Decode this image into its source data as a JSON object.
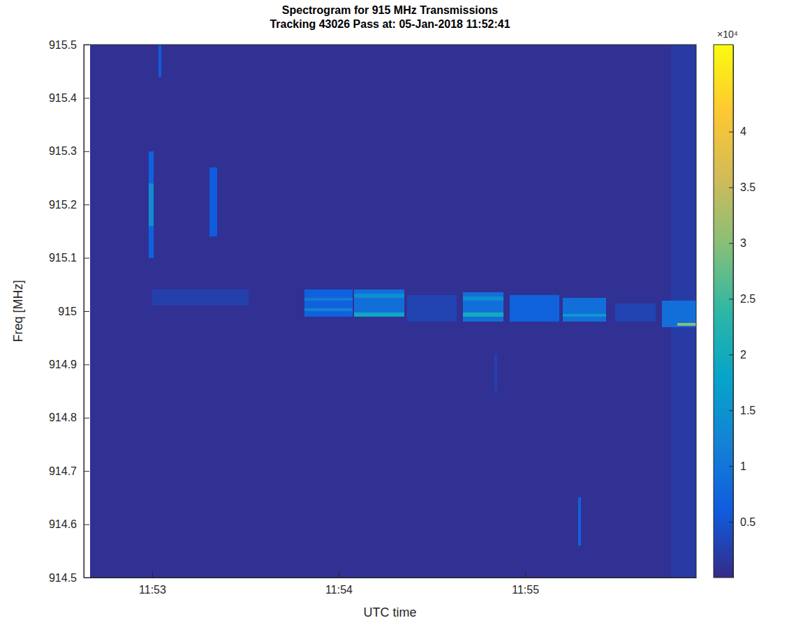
{
  "chart_data": {
    "type": "heatmap",
    "title": "Spectrogram for 915 MHz Transmissions",
    "subtitle": "Tracking 43026 Pass at: 05-Jan-2018 11:52:41",
    "x_label": "UTC time",
    "y_label": "Freq [MHz]",
    "xlim": [
      42758,
      42955
    ],
    "xticks": [
      {
        "value": 42780,
        "label": "11:53"
      },
      {
        "value": 42840,
        "label": "11:54"
      },
      {
        "value": 42900,
        "label": "11:55"
      }
    ],
    "ylim": [
      914.5,
      915.5
    ],
    "yticks": [
      914.5,
      914.6,
      914.7,
      914.8,
      914.9,
      915,
      915.1,
      915.2,
      915.3,
      915.4,
      915.5
    ],
    "cells": [
      {
        "t0": 42760,
        "t1": 42955,
        "f0": 914.5,
        "f1": 915.5,
        "value": 800
      },
      {
        "t0": 42947,
        "t1": 42955,
        "f0": 914.5,
        "f1": 915.5,
        "value": 2000
      },
      {
        "t0": 42779,
        "t1": 42780.5,
        "f0": 915.1,
        "f1": 915.3,
        "value": 7000
      },
      {
        "t0": 42779,
        "t1": 42780.5,
        "f0": 915.16,
        "f1": 915.24,
        "value": 14000
      },
      {
        "t0": 42782,
        "t1": 42783,
        "f0": 915.44,
        "f1": 915.5,
        "value": 6000
      },
      {
        "t0": 42798.5,
        "t1": 42801,
        "f0": 915.14,
        "f1": 915.27,
        "value": 6000
      },
      {
        "t0": 42780,
        "t1": 42811,
        "f0": 915.01,
        "f1": 915.04,
        "value": 2500
      },
      {
        "t0": 42829,
        "t1": 42844.5,
        "f0": 914.99,
        "f1": 915.04,
        "value": 7000
      },
      {
        "t0": 42829,
        "t1": 42844.5,
        "f0": 915.0,
        "f1": 915.005,
        "value": 12000
      },
      {
        "t0": 42829,
        "t1": 42844.5,
        "f0": 915.02,
        "f1": 915.025,
        "value": 11000
      },
      {
        "t0": 42845,
        "t1": 42861,
        "f0": 914.99,
        "f1": 915.04,
        "value": 9000
      },
      {
        "t0": 42845,
        "t1": 42861,
        "f0": 914.99,
        "f1": 914.997,
        "value": 19000
      },
      {
        "t0": 42845,
        "t1": 42861,
        "f0": 915.025,
        "f1": 915.033,
        "value": 14000
      },
      {
        "t0": 42862,
        "t1": 42878,
        "f0": 914.98,
        "f1": 915.03,
        "value": 3000
      },
      {
        "t0": 42880,
        "t1": 42893,
        "f0": 914.98,
        "f1": 915.035,
        "value": 9000
      },
      {
        "t0": 42880,
        "t1": 42893,
        "f0": 914.99,
        "f1": 914.997,
        "value": 20000
      },
      {
        "t0": 42880,
        "t1": 42893,
        "f0": 915.02,
        "f1": 915.027,
        "value": 14000
      },
      {
        "t0": 42895,
        "t1": 42911,
        "f0": 914.98,
        "f1": 915.03,
        "value": 7000
      },
      {
        "t0": 42912,
        "t1": 42926,
        "f0": 914.98,
        "f1": 915.025,
        "value": 9000
      },
      {
        "t0": 42912,
        "t1": 42926,
        "f0": 914.99,
        "f1": 914.995,
        "value": 16000
      },
      {
        "t0": 42929,
        "t1": 42942,
        "f0": 914.98,
        "f1": 915.015,
        "value": 3000
      },
      {
        "t0": 42944,
        "t1": 42955,
        "f0": 914.97,
        "f1": 915.02,
        "value": 9000
      },
      {
        "t0": 42949,
        "t1": 42955,
        "f0": 914.973,
        "f1": 914.978,
        "value": 30000
      },
      {
        "t0": 42917,
        "t1": 42918,
        "f0": 914.56,
        "f1": 914.65,
        "value": 7000
      },
      {
        "t0": 42890,
        "t1": 42891,
        "f0": 914.85,
        "f1": 914.92,
        "value": 2500
      }
    ],
    "colorbar": {
      "range": [
        0,
        47800
      ],
      "ticks": [
        {
          "value": 5000,
          "label": "0.5"
        },
        {
          "value": 10000,
          "label": "1"
        },
        {
          "value": 15000,
          "label": "1.5"
        },
        {
          "value": 20000,
          "label": "2"
        },
        {
          "value": 25000,
          "label": "2.5"
        },
        {
          "value": 30000,
          "label": "3"
        },
        {
          "value": 35000,
          "label": "3.5"
        },
        {
          "value": 40000,
          "label": "4"
        }
      ],
      "multiplier_label": "×10⁴"
    }
  }
}
